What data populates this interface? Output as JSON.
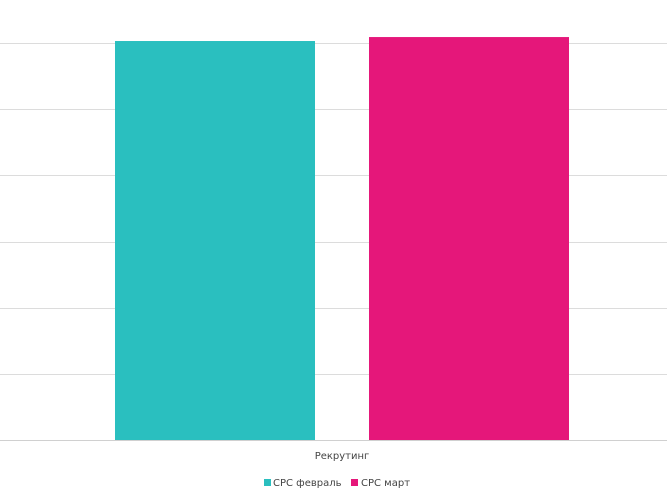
{
  "chart_data": {
    "type": "bar",
    "title": "",
    "xlabel": "",
    "ylabel": "",
    "categories": [
      "Рекрутинг"
    ],
    "series": [
      {
        "name": "CPC февраль",
        "values": [
          6.03
        ],
        "color": "#2abfbf"
      },
      {
        "name": "CPC март",
        "values": [
          6.09
        ],
        "color": "#e5177a"
      }
    ],
    "ylim": [
      0,
      6
    ],
    "y_tick_labels_shown": false,
    "gridlines": 6,
    "grid": true,
    "legend_position": "bottom"
  }
}
